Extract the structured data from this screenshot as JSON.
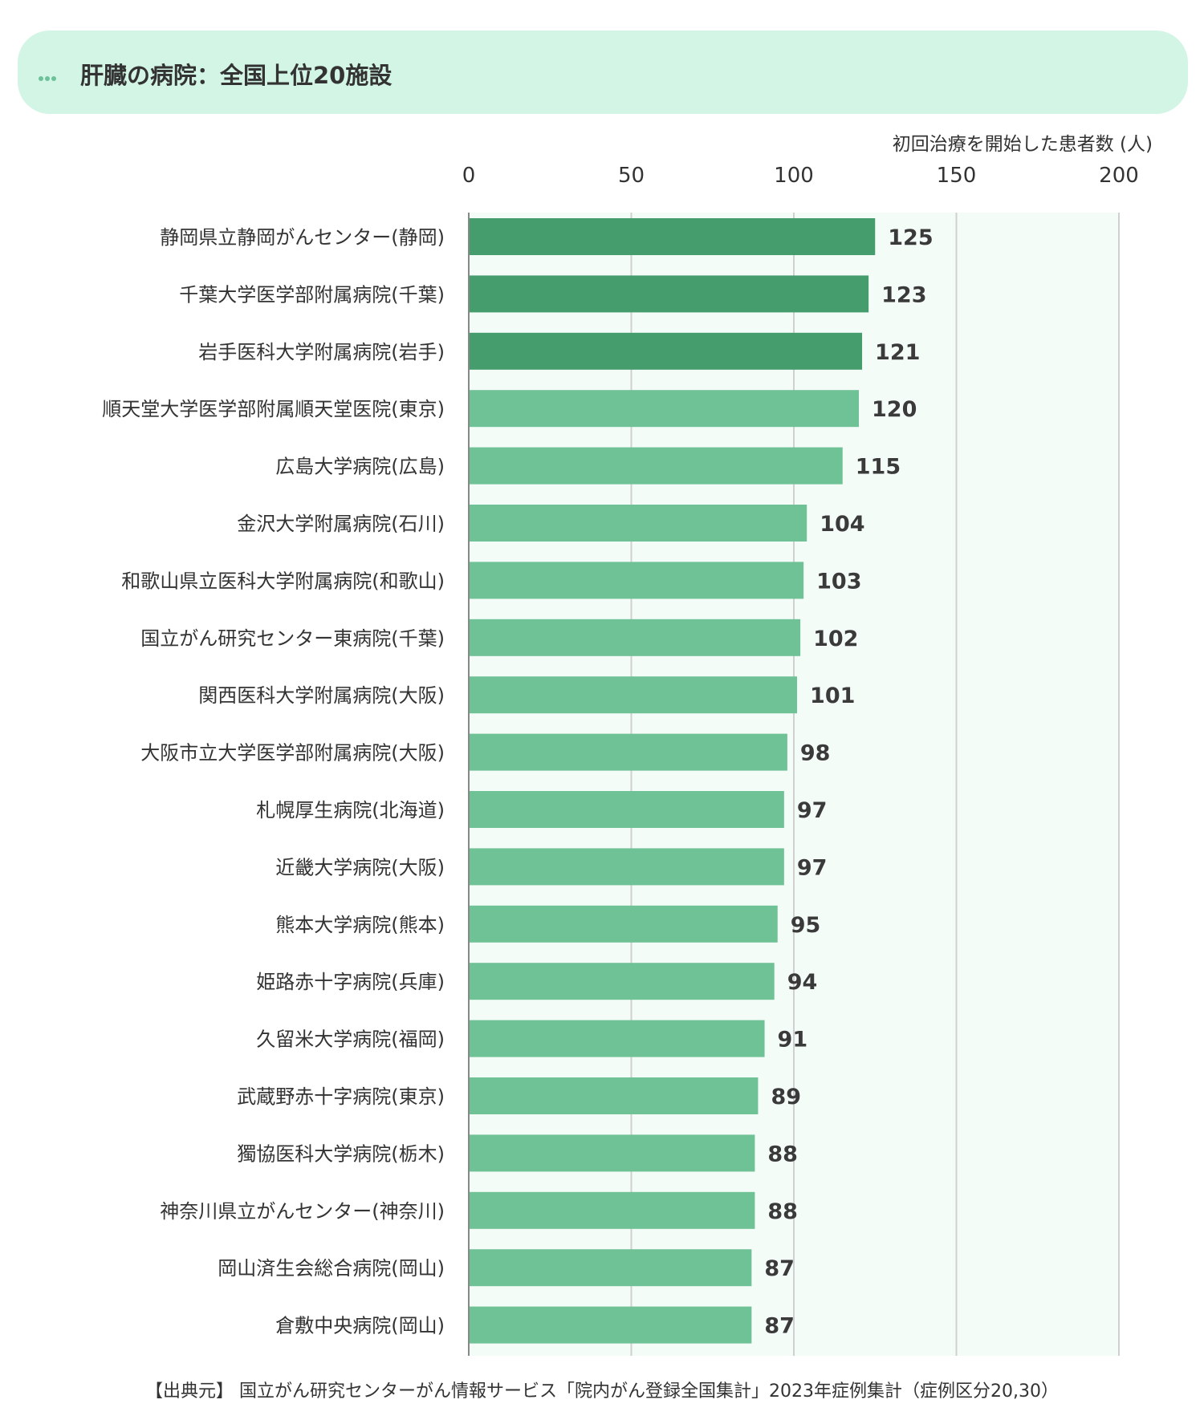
{
  "header": {
    "title": "肝臓の病院：全国上位20施設"
  },
  "chart_data": {
    "type": "bar",
    "orientation": "horizontal",
    "xlabel": "初回治療を開始した患者数 (人)",
    "xlim": [
      0,
      200
    ],
    "xticks": [
      0,
      50,
      100,
      150,
      200
    ],
    "grid": true,
    "categories": [
      "静岡県立静岡がんセンター(静岡)",
      "千葉大学医学部附属病院(千葉)",
      "岩手医科大学附属病院(岩手)",
      "順天堂大学医学部附属順天堂医院(東京)",
      "広島大学病院(広島)",
      "金沢大学附属病院(石川)",
      "和歌山県立医科大学附属病院(和歌山)",
      "国立がん研究センター東病院(千葉)",
      "関西医科大学附属病院(大阪)",
      "大阪市立大学医学部附属病院(大阪)",
      "札幌厚生病院(北海道)",
      "近畿大学病院(大阪)",
      "熊本大学病院(熊本)",
      "姫路赤十字病院(兵庫)",
      "久留米大学病院(福岡)",
      "武蔵野赤十字病院(東京)",
      "獨協医科大学病院(栃木)",
      "神奈川県立がんセンター(神奈川)",
      "岡山済生会総合病院(岡山)",
      "倉敷中央病院(岡山)"
    ],
    "values": [
      125,
      123,
      121,
      120,
      115,
      104,
      103,
      102,
      101,
      98,
      97,
      97,
      95,
      94,
      91,
      89,
      88,
      88,
      87,
      87
    ],
    "highlight_top": 3,
    "colors": {
      "highlight": "#459d6e",
      "bar": "#6fc196",
      "plot_bg": "#f4fcf8",
      "grid": "#d0d0d0",
      "axis": "#888888"
    }
  },
  "source": {
    "text": "【出典元】 国立がん研究センターがん情報サービス「院内がん登録全国集計」2023年症例集計（症例区分20,30）"
  }
}
